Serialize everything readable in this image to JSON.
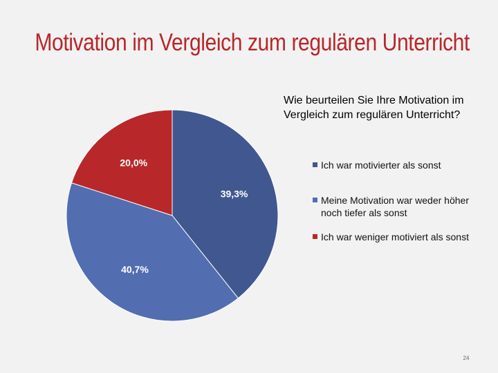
{
  "slide": {
    "title": "Motivation im Vergleich zum regulären Unterricht",
    "page_number": "24"
  },
  "chart_data": {
    "type": "pie",
    "title": "Wie beurteilen Sie Ihre Motivation im Vergleich zum regulären Unterricht?",
    "slices": [
      {
        "label": "Ich war motivierter als sonst",
        "value": 39.3,
        "display": "39,3%",
        "color": "#41578f"
      },
      {
        "label": "Meine Motivation war weder höher noch tiefer als sonst",
        "value": 40.7,
        "display": "40,7%",
        "color": "#526eb0"
      },
      {
        "label": "Ich war weniger motiviert als sonst",
        "value": 20.0,
        "display": "20,0%",
        "color": "#b8282a"
      }
    ],
    "legend_position": "right"
  }
}
